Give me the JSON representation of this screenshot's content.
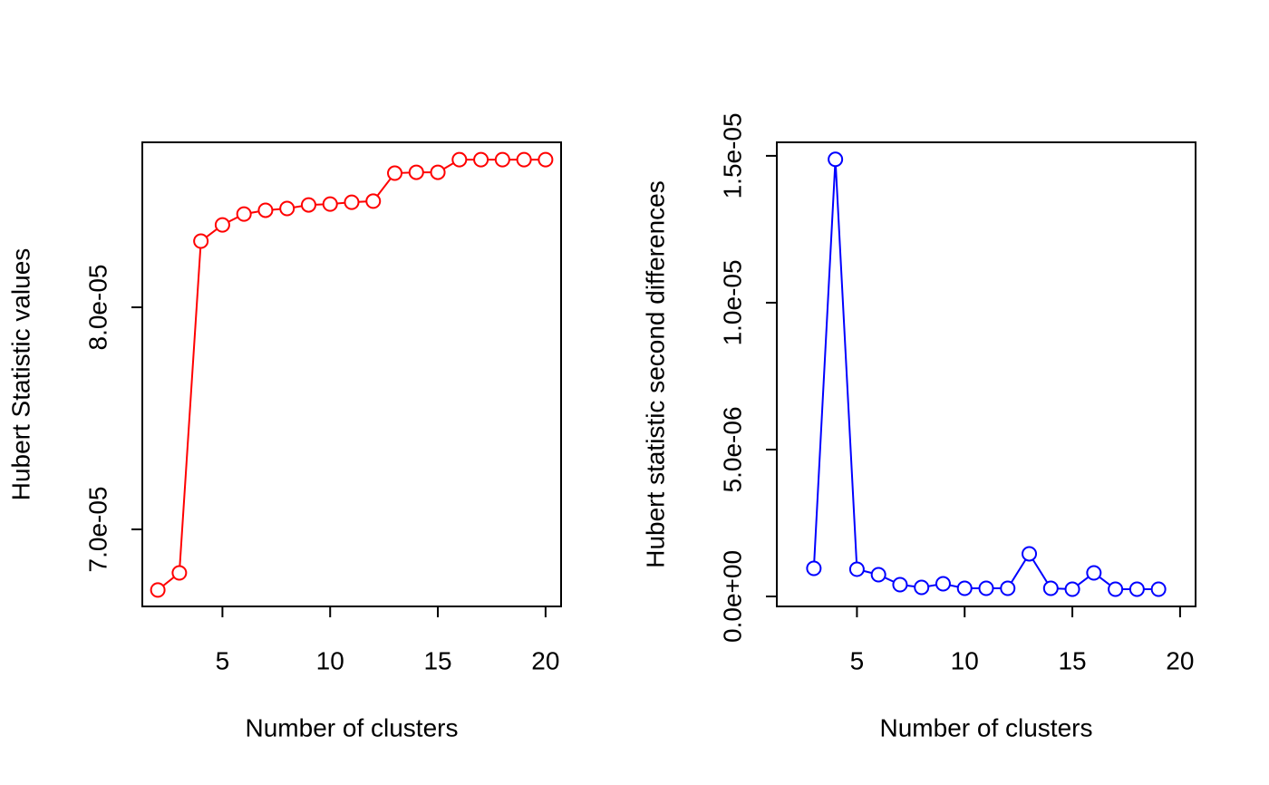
{
  "chart_data": [
    {
      "type": "line",
      "x_label": "Number of clusters",
      "y_label": "Hubert Statistic values",
      "color": "#ff0000",
      "x": [
        2,
        3,
        4,
        5,
        6,
        7,
        8,
        9,
        10,
        11,
        12,
        13,
        14,
        15,
        16,
        17,
        18,
        19,
        20
      ],
      "values": [
        6.727e-05,
        6.804e-05,
        8.298e-05,
        8.371e-05,
        8.42e-05,
        8.437e-05,
        8.445e-05,
        8.461e-05,
        8.465e-05,
        8.473e-05,
        8.478e-05,
        8.604e-05,
        8.608e-05,
        8.608e-05,
        8.665e-05,
        8.665e-05,
        8.665e-05,
        8.665e-05,
        8.665e-05
      ],
      "xlim": [
        1.28,
        20.72
      ],
      "xticks": [
        5,
        10,
        15,
        20
      ],
      "ylim": [
        6.653e-05,
        8.743e-05
      ],
      "yticks": [
        {
          "value": 7e-05,
          "label": "7.0e-05"
        },
        {
          "value": 8e-05,
          "label": "8.0e-05"
        }
      ]
    },
    {
      "type": "line",
      "x_label": "Number of clusters",
      "y_label": "Hubert statistic second differences",
      "color": "#0000ff",
      "x": [
        3,
        4,
        5,
        6,
        7,
        8,
        9,
        10,
        11,
        12,
        13,
        14,
        15,
        16,
        17,
        18,
        19
      ],
      "values": [
        9.57e-07,
        1.488e-05,
        9.26e-07,
        7.41e-07,
        4.01e-07,
        3.09e-07,
        4.32e-07,
        2.78e-07,
        2.78e-07,
        2.78e-07,
        1.451e-06,
        2.78e-07,
        2.47e-07,
        8.02e-07,
        2.47e-07,
        2.47e-07,
        2.47e-07
      ],
      "xlim": [
        1.28,
        20.72
      ],
      "xticks": [
        5,
        10,
        15,
        20
      ],
      "ylim": [
        -3.4e-07,
        1.546e-05
      ],
      "yticks": [
        {
          "value": 0,
          "label": "0.0e+00"
        },
        {
          "value": 5e-06,
          "label": "5.0e-06"
        },
        {
          "value": 1e-05,
          "label": "1.0e-05"
        },
        {
          "value": 1.5e-05,
          "label": "1.5e-05"
        }
      ]
    }
  ]
}
